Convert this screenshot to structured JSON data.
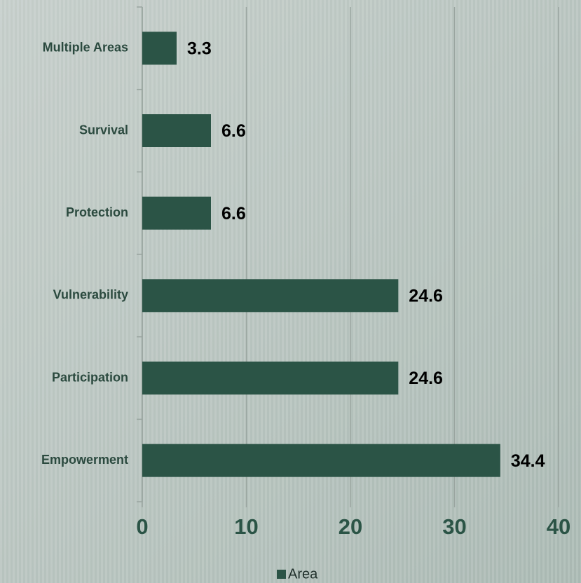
{
  "chart_data": {
    "type": "bar",
    "orientation": "horizontal",
    "categories": [
      "Multiple Areas",
      "Survival",
      "Protection",
      "Vulnerability",
      "Participation",
      "Empowerment"
    ],
    "series": [
      {
        "name": "Area",
        "color": "#2b5446",
        "values": [
          3.3,
          6.6,
          6.6,
          24.6,
          24.6,
          34.4
        ]
      }
    ],
    "xlim": [
      0,
      40
    ],
    "xticks": [
      0,
      10,
      20,
      30,
      40
    ],
    "grid": true,
    "legend": "bottom"
  }
}
